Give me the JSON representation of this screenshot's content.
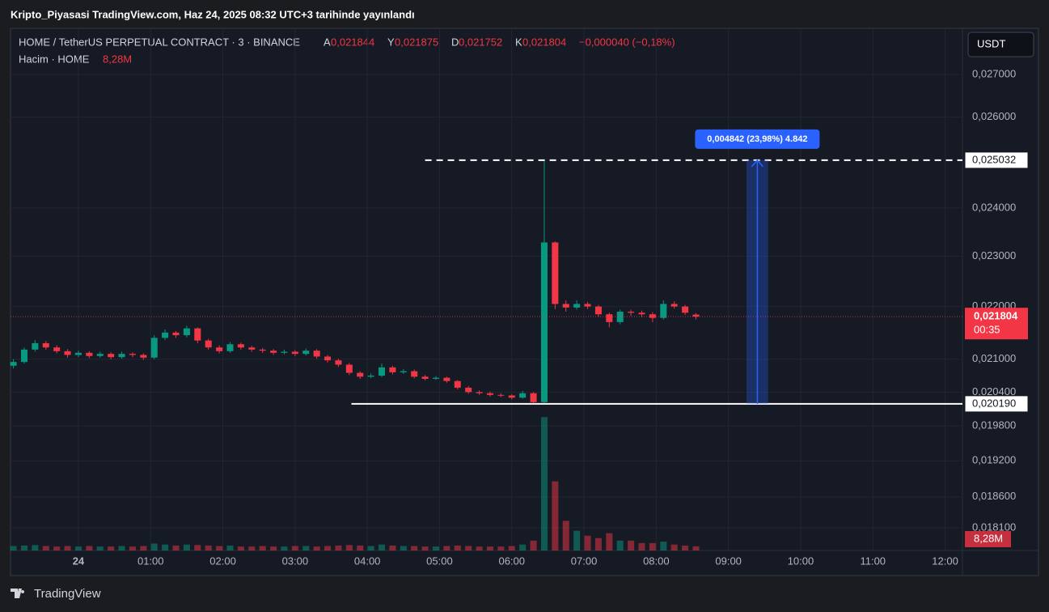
{
  "page": {
    "publish_note": "Kripto_Piyasasi TradingView.com, Haz 24, 2025 08:32 UTC+3 tarihinde yayınlandı",
    "footer_brand": "TradingView",
    "currency_button": "USDT"
  },
  "chart_data": {
    "type": "candlestick",
    "title": "HOME / TetherUS PERPETUAL CONTRACT · 3 · BINANCE",
    "ohlc_legend": [
      {
        "key": "A",
        "value": "0,021844"
      },
      {
        "key": "Y",
        "value": "0,021875"
      },
      {
        "key": "D",
        "value": "0,021752"
      },
      {
        "key": "K",
        "value": "0,021804"
      }
    ],
    "change": "−0,000040 (−0,18%)",
    "volume_legend": "Hacim · HOME",
    "log_scale": true,
    "grid": true,
    "up_color": "#089981",
    "down_color": "#f23645",
    "xlim": [
      -0.94,
      12.24
    ],
    "xticks": [
      {
        "value": 0,
        "label": "24"
      },
      {
        "value": 1,
        "label": "01:00"
      },
      {
        "value": 2,
        "label": "02:00"
      },
      {
        "value": 3,
        "label": "03:00"
      },
      {
        "value": 4,
        "label": "04:00"
      },
      {
        "value": 5,
        "label": "05:00"
      },
      {
        "value": 6,
        "label": "06:00"
      },
      {
        "value": 7,
        "label": "07:00"
      },
      {
        "value": 8,
        "label": "08:00"
      },
      {
        "value": 9,
        "label": "09:00"
      },
      {
        "value": 10,
        "label": "10:00"
      },
      {
        "value": 11,
        "label": "11:00"
      },
      {
        "value": 12,
        "label": "12:00"
      }
    ],
    "ylim": [
      0.01774,
      0.02812
    ],
    "yticks": [
      {
        "value": 0.027,
        "label": "0,027000"
      },
      {
        "value": 0.026,
        "label": "0,026000"
      },
      {
        "value": 0.024,
        "label": "0,024000"
      },
      {
        "value": 0.023,
        "label": "0,023000"
      },
      {
        "value": 0.022,
        "label": "0,022000"
      },
      {
        "value": 0.021,
        "label": "0,021000"
      },
      {
        "value": 0.0204,
        "label": "0,020400"
      },
      {
        "value": 0.0198,
        "label": "0,019800"
      },
      {
        "value": 0.0192,
        "label": "0,019200"
      },
      {
        "value": 0.0186,
        "label": "0,018600"
      },
      {
        "value": 0.0181,
        "label": "0,018100"
      }
    ],
    "x": [
      -0.9,
      -0.75,
      -0.6,
      -0.45,
      -0.3,
      -0.15,
      0,
      0.15,
      0.3,
      0.45,
      0.6,
      0.75,
      0.9,
      1.05,
      1.2,
      1.35,
      1.5,
      1.65,
      1.8,
      1.95,
      2.1,
      2.25,
      2.4,
      2.55,
      2.7,
      2.85,
      3,
      3.15,
      3.3,
      3.45,
      3.6,
      3.75,
      3.9,
      4.05,
      4.2,
      4.35,
      4.5,
      4.65,
      4.8,
      4.95,
      5.1,
      5.25,
      5.4,
      5.55,
      5.7,
      5.85,
      6,
      6.15,
      6.3,
      6.45,
      6.6,
      6.75,
      6.9,
      7.05,
      7.2,
      7.35,
      7.5,
      7.65,
      7.8,
      7.95,
      8.1,
      8.25,
      8.4,
      8.55
    ],
    "candles": [
      [
        0.02088,
        0.021,
        0.02083,
        0.02095
      ],
      [
        0.02095,
        0.02122,
        0.02092,
        0.02118
      ],
      [
        0.02118,
        0.02136,
        0.02114,
        0.0213
      ],
      [
        0.0213,
        0.02134,
        0.02118,
        0.02122
      ],
      [
        0.02122,
        0.02126,
        0.02111,
        0.02115
      ],
      [
        0.02115,
        0.02119,
        0.02103,
        0.02108
      ],
      [
        0.02108,
        0.02116,
        0.02104,
        0.02112
      ],
      [
        0.02112,
        0.02115,
        0.02102,
        0.02106
      ],
      [
        0.02106,
        0.02114,
        0.02103,
        0.0211
      ],
      [
        0.0211,
        0.02113,
        0.021,
        0.02104
      ],
      [
        0.02104,
        0.02114,
        0.02101,
        0.0211
      ],
      [
        0.0211,
        0.02113,
        0.02104,
        0.02108
      ],
      [
        0.02108,
        0.02111,
        0.02099,
        0.02103
      ],
      [
        0.02103,
        0.02145,
        0.021,
        0.0214
      ],
      [
        0.0214,
        0.02156,
        0.02136,
        0.0215
      ],
      [
        0.0215,
        0.02153,
        0.0214,
        0.02145
      ],
      [
        0.02145,
        0.02163,
        0.02141,
        0.02158
      ],
      [
        0.02158,
        0.0216,
        0.0213,
        0.02135
      ],
      [
        0.02135,
        0.02138,
        0.02118,
        0.02122
      ],
      [
        0.02122,
        0.02126,
        0.02111,
        0.02115
      ],
      [
        0.02115,
        0.02132,
        0.02112,
        0.02128
      ],
      [
        0.02128,
        0.02131,
        0.02118,
        0.02122
      ],
      [
        0.02122,
        0.02125,
        0.02114,
        0.02118
      ],
      [
        0.02118,
        0.02121,
        0.02112,
        0.02116
      ],
      [
        0.02116,
        0.02119,
        0.02108,
        0.02112
      ],
      [
        0.02112,
        0.02118,
        0.02109,
        0.02114
      ],
      [
        0.02114,
        0.02117,
        0.02106,
        0.0211
      ],
      [
        0.0211,
        0.0212,
        0.02107,
        0.02116
      ],
      [
        0.02116,
        0.02119,
        0.02101,
        0.02105
      ],
      [
        0.02105,
        0.02108,
        0.02094,
        0.02098
      ],
      [
        0.02098,
        0.02101,
        0.02086,
        0.0209
      ],
      [
        0.0209,
        0.02093,
        0.02071,
        0.02075
      ],
      [
        0.02075,
        0.02078,
        0.02064,
        0.02068
      ],
      [
        0.02068,
        0.02074,
        0.02065,
        0.0207
      ],
      [
        0.0207,
        0.02092,
        0.02067,
        0.02085
      ],
      [
        0.02085,
        0.02088,
        0.02072,
        0.02076
      ],
      [
        0.02076,
        0.02082,
        0.02073,
        0.02078
      ],
      [
        0.02078,
        0.02081,
        0.02065,
        0.02068
      ],
      [
        0.02068,
        0.02071,
        0.02061,
        0.02064
      ],
      [
        0.02064,
        0.02069,
        0.02062,
        0.02066
      ],
      [
        0.02066,
        0.02068,
        0.02057,
        0.0206
      ],
      [
        0.0206,
        0.02062,
        0.02045,
        0.02048
      ],
      [
        0.02048,
        0.02051,
        0.02037,
        0.0204
      ],
      [
        0.0204,
        0.02043,
        0.02035,
        0.02038
      ],
      [
        0.02038,
        0.02041,
        0.02032,
        0.02035
      ],
      [
        0.02035,
        0.02038,
        0.02031,
        0.02034
      ],
      [
        0.02034,
        0.02036,
        0.02027,
        0.0203
      ],
      [
        0.0203,
        0.02042,
        0.02028,
        0.02038
      ],
      [
        0.02038,
        0.0204,
        0.02019,
        0.02022
      ],
      [
        0.02022,
        0.025032,
        0.02019,
        0.02328
      ],
      [
        0.02328,
        0.0233,
        0.02195,
        0.02205
      ],
      [
        0.02205,
        0.02212,
        0.0219,
        0.02198
      ],
      [
        0.02198,
        0.02212,
        0.02194,
        0.02205
      ],
      [
        0.02205,
        0.02209,
        0.02195,
        0.022
      ],
      [
        0.022,
        0.02203,
        0.0218,
        0.02185
      ],
      [
        0.02185,
        0.02188,
        0.0216,
        0.0217
      ],
      [
        0.0217,
        0.02194,
        0.02166,
        0.0219
      ],
      [
        0.0219,
        0.02194,
        0.02182,
        0.02188
      ],
      [
        0.02188,
        0.02192,
        0.02179,
        0.02185
      ],
      [
        0.02185,
        0.02189,
        0.0217,
        0.02178
      ],
      [
        0.02178,
        0.02212,
        0.02175,
        0.02205
      ],
      [
        0.02205,
        0.0221,
        0.02196,
        0.022
      ],
      [
        0.022,
        0.02203,
        0.02184,
        0.02188
      ],
      [
        0.021844,
        0.021875,
        0.021752,
        0.021804
      ]
    ],
    "volume": [
      9,
      10,
      11,
      9,
      8,
      9,
      8,
      9,
      8,
      8,
      9,
      8,
      9,
      14,
      12,
      10,
      12,
      11,
      10,
      9,
      10,
      8,
      8,
      9,
      8,
      8,
      9,
      9,
      8,
      9,
      10,
      11,
      10,
      9,
      12,
      10,
      9,
      9,
      8,
      8,
      9,
      10,
      9,
      8,
      8,
      8,
      9,
      12,
      20,
      270,
      140,
      60,
      40,
      30,
      25,
      35,
      20,
      20,
      15,
      15,
      18,
      12,
      10,
      8.28
    ],
    "volume_ylim": [
      0,
      300
    ],
    "volume_value_labels": {
      "63": "8,28M"
    },
    "last_price_label": "0,021804",
    "countdown": "00:35",
    "hlines": [
      {
        "value": 0.025032,
        "label": "0,025032",
        "start": 4.8,
        "dashed": true
      },
      {
        "value": 0.02019,
        "label": "0,020190",
        "start": 3.78,
        "dashed": false
      }
    ],
    "measure": {
      "from": 0.02019,
      "to": 0.025032,
      "x_range": [
        9.25,
        9.55
      ],
      "label": "0,004842 (23,98%) 4.842"
    }
  }
}
